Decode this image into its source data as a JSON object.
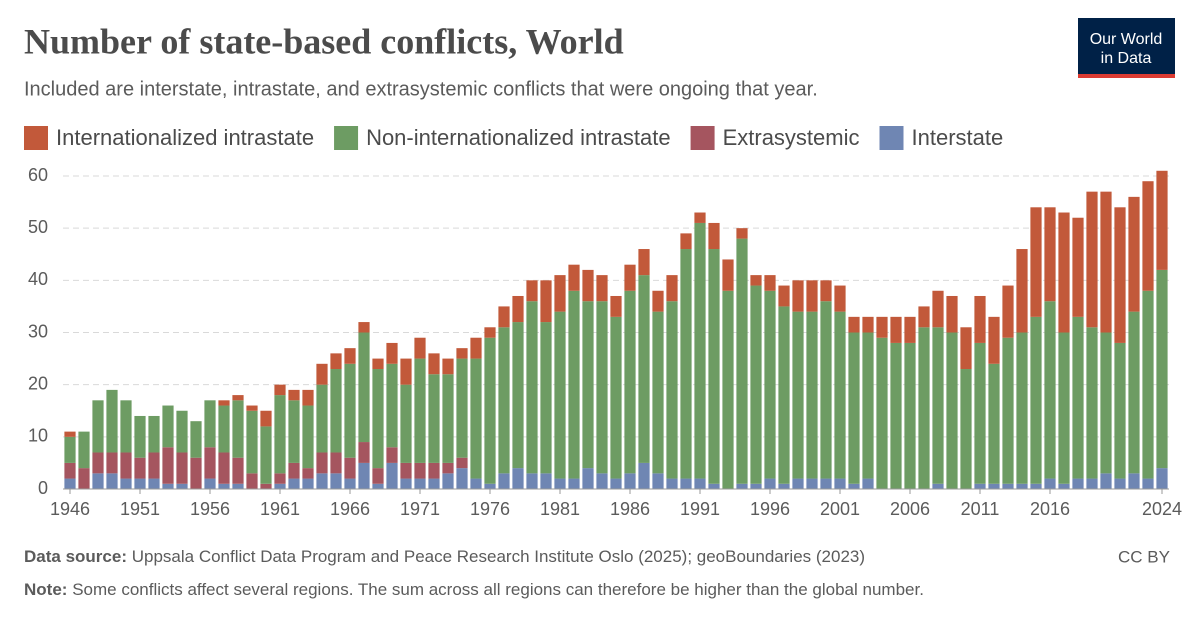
{
  "chart_data": {
    "type": "stacked-bar",
    "title": "Number of state-based conflicts, World",
    "subtitle": "Included are interstate, intrastate, and extrasystemic conflicts that were ongoing that year.",
    "logo": [
      "Our World",
      "in Data"
    ],
    "source_label": "Data source:",
    "source_text": "Uppsala Conflict Data Program and Peace Research Institute Oslo (2025); geoBoundaries (2023)",
    "license": "CC BY",
    "note_label": "Note:",
    "note_text": "Some conflicts affect several regions. The sum across all regions can therefore be higher than the global number.",
    "x": [
      1946,
      1947,
      1948,
      1949,
      1950,
      1951,
      1952,
      1953,
      1954,
      1955,
      1956,
      1957,
      1958,
      1959,
      1960,
      1961,
      1962,
      1963,
      1964,
      1965,
      1966,
      1967,
      1968,
      1969,
      1970,
      1971,
      1972,
      1973,
      1974,
      1975,
      1976,
      1977,
      1978,
      1979,
      1980,
      1981,
      1982,
      1983,
      1984,
      1985,
      1986,
      1987,
      1988,
      1989,
      1990,
      1991,
      1992,
      1993,
      1994,
      1995,
      1996,
      1997,
      1998,
      1999,
      2000,
      2001,
      2002,
      2003,
      2004,
      2005,
      2006,
      2007,
      2008,
      2009,
      2010,
      2011,
      2012,
      2013,
      2014,
      2015,
      2016,
      2017,
      2018,
      2019,
      2020,
      2021,
      2022,
      2023,
      2024
    ],
    "xlim": [
      1945.5,
      2024.5
    ],
    "xticks": [
      1946,
      1951,
      1956,
      1961,
      1966,
      1971,
      1976,
      1981,
      1986,
      1991,
      1996,
      2001,
      2006,
      2011,
      2016,
      2024
    ],
    "ylim": [
      0,
      62
    ],
    "yticks": [
      0,
      10,
      20,
      30,
      40,
      50,
      60
    ],
    "grid": true,
    "series": [
      {
        "name": "Internationalized intrastate",
        "color": "#c2593a",
        "values": [
          1,
          0,
          0,
          0,
          0,
          0,
          0,
          0,
          0,
          0,
          0,
          1,
          1,
          1,
          3,
          2,
          2,
          3,
          4,
          3,
          3,
          2,
          2,
          4,
          5,
          4,
          4,
          3,
          2,
          4,
          2,
          4,
          5,
          4,
          8,
          7,
          5,
          6,
          5,
          4,
          5,
          5,
          4,
          5,
          3,
          2,
          5,
          6,
          2,
          2,
          3,
          4,
          6,
          6,
          4,
          5,
          3,
          3,
          4,
          5,
          5,
          4,
          7,
          7,
          8,
          9,
          9,
          10,
          16,
          21,
          18,
          23,
          19,
          26,
          27,
          26,
          22,
          21,
          19
        ]
      },
      {
        "name": "Non-internationalized intrastate",
        "color": "#6d9c63",
        "values": [
          5,
          7,
          10,
          12,
          10,
          8,
          7,
          8,
          8,
          7,
          9,
          9,
          11,
          12,
          11,
          15,
          12,
          12,
          13,
          16,
          18,
          21,
          19,
          16,
          15,
          20,
          17,
          17,
          19,
          23,
          28,
          28,
          28,
          33,
          29,
          32,
          36,
          32,
          33,
          31,
          35,
          36,
          31,
          34,
          44,
          49,
          45,
          38,
          47,
          38,
          36,
          34,
          32,
          32,
          34,
          32,
          29,
          28,
          29,
          28,
          28,
          31,
          30,
          30,
          23,
          27,
          23,
          28,
          29,
          32,
          34,
          29,
          31,
          29,
          27,
          26,
          31,
          36,
          38
        ]
      },
      {
        "name": "Extrasystemic",
        "color": "#a5555f",
        "values": [
          3,
          4,
          4,
          4,
          5,
          4,
          5,
          7,
          6,
          6,
          6,
          6,
          5,
          3,
          1,
          2,
          3,
          2,
          4,
          4,
          4,
          4,
          3,
          3,
          3,
          3,
          3,
          2,
          2,
          0,
          0,
          0,
          0,
          0,
          0,
          0,
          0,
          0,
          0,
          0,
          0,
          0,
          0,
          0,
          0,
          0,
          0,
          0,
          0,
          0,
          0,
          0,
          0,
          0,
          0,
          0,
          0,
          0,
          0,
          0,
          0,
          0,
          0,
          0,
          0,
          0,
          0,
          0,
          0,
          0,
          0,
          0,
          0,
          0,
          0,
          0,
          0,
          0,
          0
        ]
      },
      {
        "name": "Interstate",
        "color": "#6f86b3",
        "values": [
          2,
          0,
          3,
          3,
          2,
          2,
          2,
          1,
          1,
          0,
          2,
          1,
          1,
          0,
          0,
          1,
          2,
          2,
          3,
          3,
          2,
          5,
          1,
          5,
          2,
          2,
          2,
          3,
          4,
          2,
          1,
          3,
          4,
          3,
          3,
          2,
          2,
          4,
          3,
          2,
          3,
          5,
          3,
          2,
          2,
          2,
          1,
          0,
          1,
          1,
          2,
          1,
          2,
          2,
          2,
          2,
          1,
          2,
          0,
          0,
          0,
          0,
          1,
          0,
          0,
          1,
          1,
          1,
          1,
          1,
          2,
          1,
          2,
          2,
          3,
          2,
          3,
          2,
          4
        ]
      }
    ]
  }
}
